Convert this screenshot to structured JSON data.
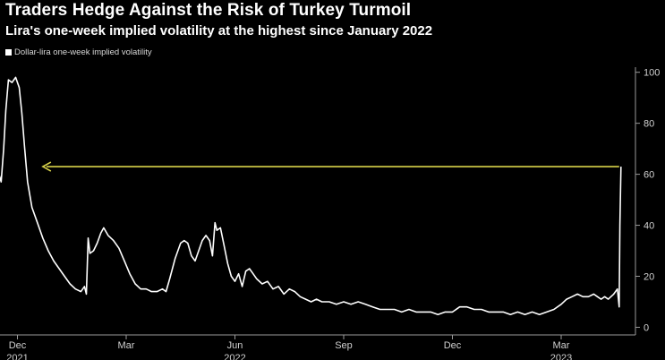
{
  "title": "Traders Hedge Against the Risk of Turkey Turmoil",
  "subtitle": "Lira's one-week implied volatility at the highest since January 2022",
  "legend": {
    "label": "Dollar-lira one-week implied volatility"
  },
  "colors": {
    "background": "#000000",
    "line": "#ffffff",
    "arrow": "#d8d24a",
    "axis": "#9a9a9a"
  },
  "chart_data": {
    "type": "line",
    "title": "Traders Hedge Against the Risk of Turkey Turmoil",
    "subtitle": "Lira's one-week implied volatility at the highest since January 2022",
    "xlabel": "",
    "ylabel": "",
    "ylim": [
      -3,
      102
    ],
    "yticks": [
      0,
      20,
      40,
      60,
      80,
      100
    ],
    "xlim": [
      0,
      18
    ],
    "x_tick_labels": [
      {
        "x": 1,
        "label": "Dec",
        "year": "2021"
      },
      {
        "x": 4,
        "label": "Mar",
        "year": ""
      },
      {
        "x": 7,
        "label": "Jun",
        "year": "2022"
      },
      {
        "x": 10,
        "label": "Sep",
        "year": ""
      },
      {
        "x": 13,
        "label": "Dec",
        "year": ""
      },
      {
        "x": 16,
        "label": "Mar",
        "year": "2023"
      }
    ],
    "annotation": {
      "type": "arrow",
      "y": 63,
      "x_from": 17.6,
      "x_to": 1.7,
      "color": "#d8d24a"
    },
    "series": [
      {
        "name": "Dollar-lira one-week implied volatility",
        "points": [
          [
            0.0,
            70
          ],
          [
            0.07,
            62
          ],
          [
            0.15,
            55
          ],
          [
            0.25,
            52
          ],
          [
            0.35,
            57
          ],
          [
            0.45,
            62
          ],
          [
            0.55,
            57
          ],
          [
            0.62,
            70
          ],
          [
            0.68,
            85
          ],
          [
            0.75,
            97
          ],
          [
            0.85,
            96
          ],
          [
            0.95,
            98
          ],
          [
            1.05,
            94
          ],
          [
            1.12,
            84
          ],
          [
            1.2,
            70
          ],
          [
            1.28,
            57
          ],
          [
            1.4,
            47
          ],
          [
            1.55,
            41
          ],
          [
            1.7,
            35
          ],
          [
            1.85,
            30
          ],
          [
            2.0,
            26
          ],
          [
            2.15,
            23
          ],
          [
            2.3,
            20
          ],
          [
            2.45,
            17
          ],
          [
            2.6,
            15
          ],
          [
            2.75,
            14
          ],
          [
            2.85,
            16
          ],
          [
            2.9,
            13
          ],
          [
            2.95,
            35
          ],
          [
            3.0,
            29
          ],
          [
            3.1,
            30
          ],
          [
            3.2,
            33
          ],
          [
            3.3,
            37
          ],
          [
            3.38,
            39
          ],
          [
            3.5,
            36
          ],
          [
            3.65,
            34
          ],
          [
            3.8,
            31
          ],
          [
            3.95,
            26
          ],
          [
            4.1,
            21
          ],
          [
            4.25,
            17
          ],
          [
            4.4,
            15
          ],
          [
            4.55,
            15
          ],
          [
            4.7,
            14
          ],
          [
            4.85,
            14
          ],
          [
            5.0,
            15
          ],
          [
            5.1,
            14
          ],
          [
            5.2,
            19
          ],
          [
            5.35,
            27
          ],
          [
            5.5,
            33
          ],
          [
            5.6,
            34
          ],
          [
            5.7,
            33
          ],
          [
            5.8,
            28
          ],
          [
            5.9,
            26
          ],
          [
            6.0,
            30
          ],
          [
            6.1,
            34
          ],
          [
            6.2,
            36
          ],
          [
            6.3,
            34
          ],
          [
            6.38,
            28
          ],
          [
            6.45,
            41
          ],
          [
            6.5,
            38
          ],
          [
            6.6,
            39
          ],
          [
            6.7,
            32
          ],
          [
            6.8,
            25
          ],
          [
            6.9,
            20
          ],
          [
            7.0,
            18
          ],
          [
            7.1,
            21
          ],
          [
            7.2,
            16
          ],
          [
            7.3,
            22
          ],
          [
            7.4,
            23
          ],
          [
            7.5,
            21
          ],
          [
            7.6,
            19
          ],
          [
            7.75,
            17
          ],
          [
            7.9,
            18
          ],
          [
            8.05,
            15
          ],
          [
            8.2,
            16
          ],
          [
            8.35,
            13
          ],
          [
            8.5,
            15
          ],
          [
            8.65,
            14
          ],
          [
            8.8,
            12
          ],
          [
            8.95,
            11
          ],
          [
            9.1,
            10
          ],
          [
            9.25,
            11
          ],
          [
            9.4,
            10
          ],
          [
            9.6,
            10
          ],
          [
            9.8,
            9
          ],
          [
            10.0,
            10
          ],
          [
            10.2,
            9
          ],
          [
            10.4,
            10
          ],
          [
            10.6,
            9
          ],
          [
            10.8,
            8
          ],
          [
            11.0,
            7
          ],
          [
            11.2,
            7
          ],
          [
            11.4,
            7
          ],
          [
            11.6,
            6
          ],
          [
            11.8,
            7
          ],
          [
            12.0,
            6
          ],
          [
            12.2,
            6
          ],
          [
            12.4,
            6
          ],
          [
            12.6,
            5
          ],
          [
            12.8,
            6
          ],
          [
            13.0,
            6
          ],
          [
            13.2,
            8
          ],
          [
            13.4,
            8
          ],
          [
            13.6,
            7
          ],
          [
            13.8,
            7
          ],
          [
            14.0,
            6
          ],
          [
            14.2,
            6
          ],
          [
            14.4,
            6
          ],
          [
            14.6,
            5
          ],
          [
            14.8,
            6
          ],
          [
            15.0,
            5
          ],
          [
            15.2,
            6
          ],
          [
            15.4,
            5
          ],
          [
            15.6,
            6
          ],
          [
            15.8,
            7
          ],
          [
            16.0,
            9
          ],
          [
            16.15,
            11
          ],
          [
            16.3,
            12
          ],
          [
            16.45,
            13
          ],
          [
            16.6,
            12
          ],
          [
            16.75,
            12
          ],
          [
            16.9,
            13
          ],
          [
            17.0,
            12
          ],
          [
            17.1,
            11
          ],
          [
            17.2,
            12
          ],
          [
            17.3,
            11
          ],
          [
            17.45,
            13
          ],
          [
            17.55,
            15
          ],
          [
            17.6,
            8
          ],
          [
            17.62,
            40
          ],
          [
            17.65,
            63
          ]
        ]
      }
    ]
  }
}
